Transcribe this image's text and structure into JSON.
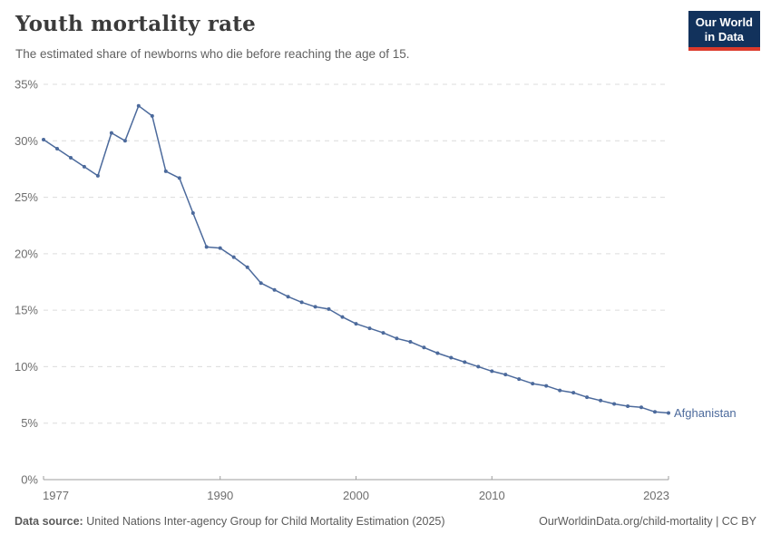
{
  "header": {
    "title": "Youth mortality rate",
    "subtitle": "The estimated share of newborns who die before reaching the age of 15.",
    "logo": {
      "line1": "Our World",
      "line2": "in Data"
    }
  },
  "chart_data": {
    "type": "line",
    "title": "Youth mortality rate",
    "subtitle": "The estimated share of newborns who die before reaching the age of 15.",
    "xlabel": "",
    "ylabel": "",
    "xlim": [
      1977,
      2023
    ],
    "ylim": [
      0,
      35
    ],
    "xticks": [
      1977,
      1990,
      2000,
      2010,
      2023
    ],
    "yticks": [
      0,
      5,
      10,
      15,
      20,
      25,
      30,
      35
    ],
    "ytick_suffix": "%",
    "grid": "horizontal-dashed",
    "legend_position": "end-of-line-label",
    "series": [
      {
        "name": "Afghanistan",
        "color": "#4c6a9c",
        "x": [
          1977,
          1978,
          1979,
          1980,
          1981,
          1982,
          1983,
          1984,
          1985,
          1986,
          1987,
          1988,
          1989,
          1990,
          1991,
          1992,
          1993,
          1994,
          1995,
          1996,
          1997,
          1998,
          1999,
          2000,
          2001,
          2002,
          2003,
          2004,
          2005,
          2006,
          2007,
          2008,
          2009,
          2010,
          2011,
          2012,
          2013,
          2014,
          2015,
          2016,
          2017,
          2018,
          2019,
          2020,
          2021,
          2022,
          2023
        ],
        "values": [
          30.1,
          29.3,
          28.5,
          27.7,
          26.9,
          30.7,
          30.0,
          33.1,
          32.2,
          27.3,
          26.7,
          23.6,
          20.6,
          20.5,
          19.7,
          18.8,
          17.4,
          16.8,
          16.2,
          15.7,
          15.3,
          15.1,
          14.4,
          13.8,
          13.4,
          13.0,
          12.5,
          12.2,
          11.7,
          11.2,
          10.8,
          10.4,
          10.0,
          9.6,
          9.3,
          8.9,
          8.5,
          8.3,
          7.9,
          7.7,
          7.3,
          7.0,
          6.7,
          6.5,
          6.4,
          6.0,
          5.9
        ]
      }
    ]
  },
  "footer": {
    "source_label": "Data source:",
    "source_text": "United Nations Inter-agency Group for Child Mortality Estimation (2025)",
    "credit": "OurWorldinData.org/child-mortality | CC BY"
  },
  "colors": {
    "line": "#4c6a9c",
    "axis_text": "#6e6e6e",
    "grid_line": "#dcdcdc",
    "axis_line": "#9e9e9e",
    "logo_bg": "#12325c",
    "logo_accent": "#dc3a2b"
  }
}
